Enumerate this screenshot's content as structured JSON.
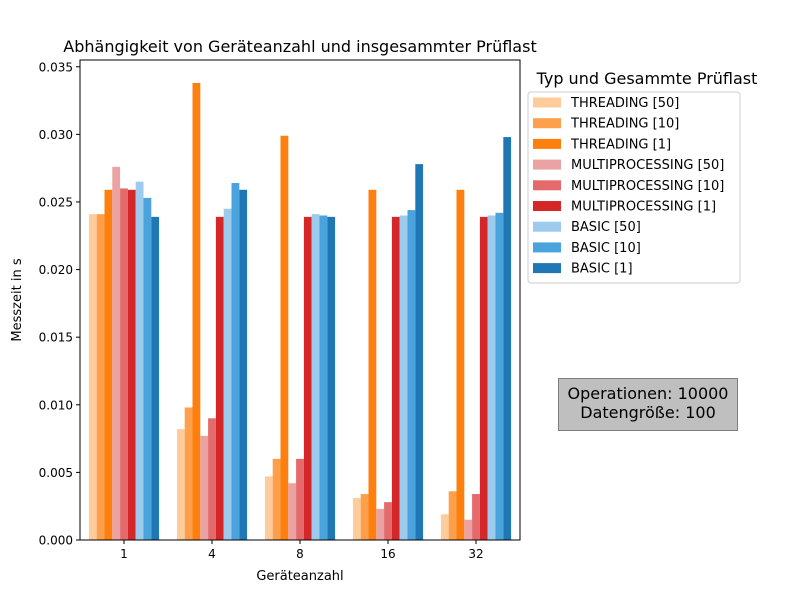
{
  "chart_data": {
    "type": "bar",
    "title": "Abhängigkeit von Geräteanzahl und insgesammter Prüflast",
    "xlabel": "Geräteanzahl",
    "ylabel": "Messzeit in s",
    "ylim": [
      0,
      0.0355
    ],
    "yticks": [
      "0.000",
      "0.005",
      "0.010",
      "0.015",
      "0.020",
      "0.025",
      "0.030",
      "0.035"
    ],
    "ytick_values": [
      0,
      0.005,
      0.01,
      0.015,
      0.02,
      0.025,
      0.03,
      0.035
    ],
    "categories": [
      "1",
      "4",
      "8",
      "16",
      "32"
    ],
    "legend_title": "Typ und Gesammte Prüflast",
    "legend_position": "outside-right-top",
    "series": [
      {
        "name": "THREADING [50]",
        "color": "#fdcc9a",
        "values": [
          0.0241,
          0.0082,
          0.0047,
          0.0031,
          0.0019
        ]
      },
      {
        "name": "THREADING [10]",
        "color": "#fd9f4b",
        "values": [
          0.0241,
          0.0098,
          0.006,
          0.0034,
          0.0036
        ]
      },
      {
        "name": "THREADING [1]",
        "color": "#fd7f0e",
        "values": [
          0.0259,
          0.0338,
          0.0299,
          0.0259,
          0.0259
        ]
      },
      {
        "name": "MULTIPROCESSING [50]",
        "color": "#eba2a2",
        "values": [
          0.0276,
          0.0077,
          0.0042,
          0.0023,
          0.0015
        ]
      },
      {
        "name": "MULTIPROCESSING [10]",
        "color": "#e46a6b",
        "values": [
          0.026,
          0.009,
          0.006,
          0.0028,
          0.0034
        ]
      },
      {
        "name": "MULTIPROCESSING [1]",
        "color": "#d62728",
        "values": [
          0.0259,
          0.0239,
          0.0239,
          0.0239,
          0.0239
        ]
      },
      {
        "name": "BASIC [50]",
        "color": "#9ccbee",
        "values": [
          0.0265,
          0.0245,
          0.0241,
          0.024,
          0.024
        ]
      },
      {
        "name": "BASIC [10]",
        "color": "#4ba3de",
        "values": [
          0.0253,
          0.0264,
          0.024,
          0.0244,
          0.0242
        ]
      },
      {
        "name": "BASIC [1]",
        "color": "#1f77b4",
        "values": [
          0.0239,
          0.0259,
          0.0239,
          0.0278,
          0.0298
        ]
      }
    ]
  },
  "info_box": {
    "line1": "Operationen: 10000",
    "line2": "Datengröße: 100"
  }
}
